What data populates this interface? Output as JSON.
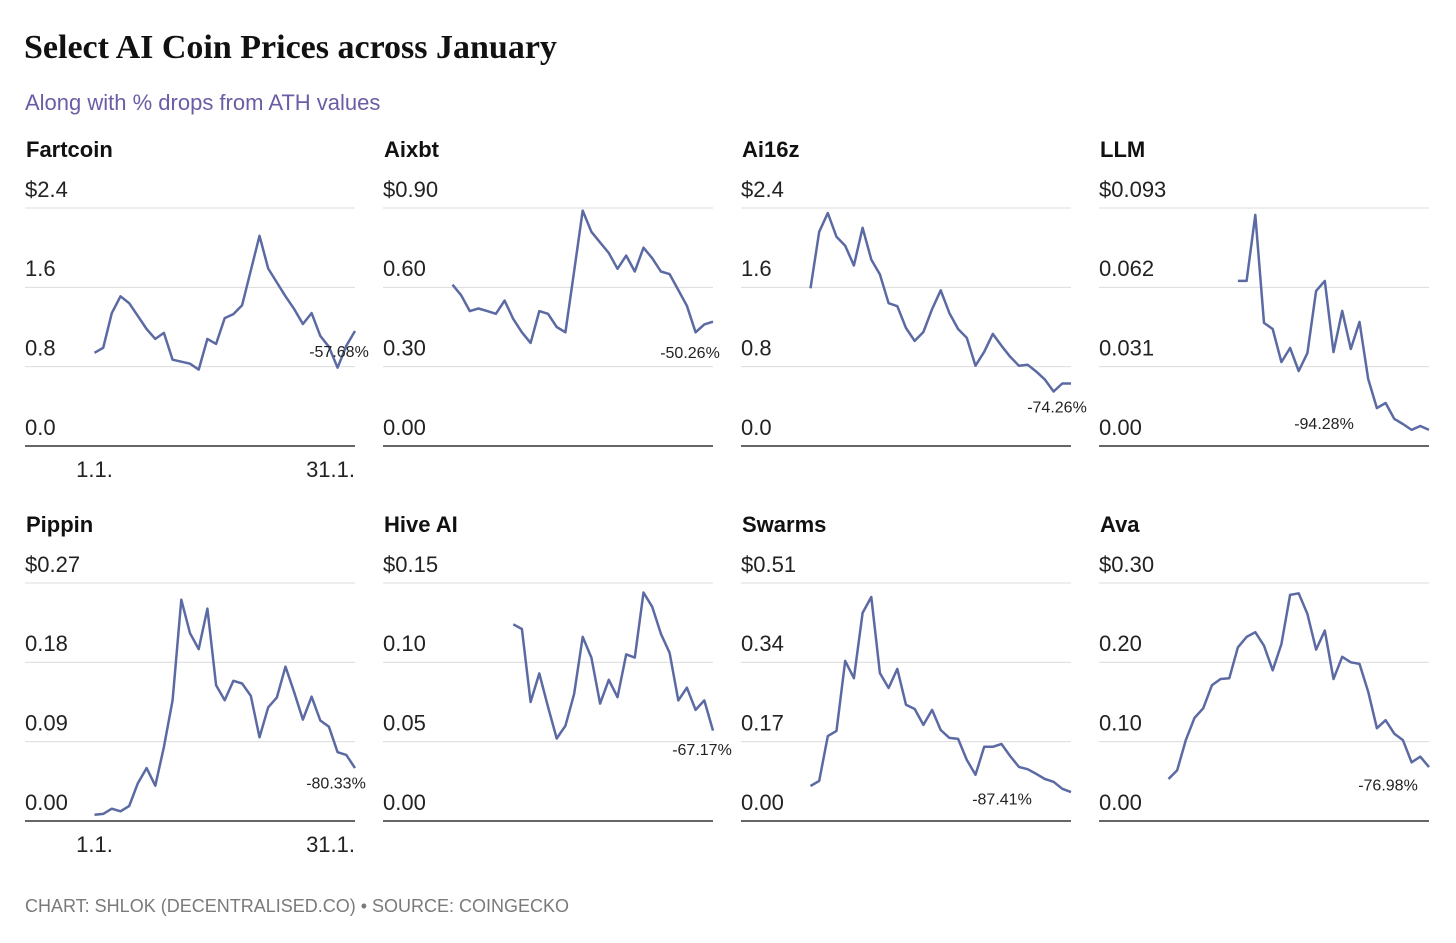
{
  "title": "Select AI Coin Prices across January",
  "subtitle": "Along with % drops from ATH values",
  "source": "CHART: SHLOK (DECENTRALISED.CO) • SOURCE: COINGECKO",
  "chart_data": [
    {
      "type": "line",
      "title": "Fartcoin",
      "color": "#5b6aa3",
      "annotation": "-57.68%",
      "x": [
        1,
        2,
        3,
        4,
        5,
        6,
        7,
        8,
        9,
        10,
        11,
        12,
        13,
        14,
        15,
        16,
        17,
        18,
        19,
        20,
        21,
        22,
        23,
        24,
        25,
        26,
        27,
        28,
        29,
        30,
        31
      ],
      "values": [
        0.94,
        0.99,
        1.34,
        1.51,
        1.44,
        1.31,
        1.18,
        1.08,
        1.14,
        0.87,
        0.85,
        0.83,
        0.77,
        1.08,
        1.03,
        1.29,
        1.33,
        1.42,
        1.77,
        2.12,
        1.79,
        1.65,
        1.51,
        1.38,
        1.23,
        1.34,
        1.11,
        1.0,
        0.79,
        1.01,
        1.16
      ],
      "xlim": [
        -7,
        31
      ],
      "xticks": [
        {
          "value": 1,
          "label": "1.1."
        },
        {
          "value": 31,
          "label": "31.1."
        }
      ],
      "ylim": [
        0,
        2.4
      ],
      "yticks": [
        {
          "value": 2.4,
          "label": "$2.4"
        },
        1.6,
        0.8,
        {
          "value": 0,
          "label": "0.0"
        }
      ]
    },
    {
      "type": "line",
      "title": "Aixbt",
      "color": "#5b6aa3",
      "annotation": "-50.26%",
      "x": [
        1,
        2,
        3,
        4,
        5,
        6,
        7,
        8,
        9,
        10,
        11,
        12,
        13,
        14,
        15,
        16,
        17,
        18,
        19,
        20,
        21,
        22,
        23,
        24,
        25,
        26,
        27,
        28,
        29,
        30,
        31
      ],
      "values": [
        0.61,
        0.57,
        0.51,
        0.52,
        0.51,
        0.5,
        0.55,
        0.48,
        0.43,
        0.39,
        0.51,
        0.5,
        0.45,
        0.43,
        0.66,
        0.89,
        0.81,
        0.77,
        0.73,
        0.67,
        0.72,
        0.66,
        0.75,
        0.71,
        0.66,
        0.65,
        0.59,
        0.53,
        0.43,
        0.46,
        0.47
      ],
      "xlim": [
        -7,
        31
      ],
      "ylim": [
        0,
        0.9
      ],
      "yticks": [
        {
          "value": 0.9,
          "label": "$0.90"
        },
        {
          "value": 0.6,
          "label": "0.60"
        },
        {
          "value": 0.3,
          "label": "0.30"
        },
        {
          "value": 0,
          "label": "0.00"
        }
      ]
    },
    {
      "type": "line",
      "title": "Ai16z",
      "color": "#5b6aa3",
      "annotation": "-74.26%",
      "x": [
        1,
        2,
        3,
        4,
        5,
        6,
        7,
        8,
        9,
        10,
        11,
        12,
        13,
        14,
        15,
        16,
        17,
        18,
        19,
        20,
        21,
        22,
        23,
        24,
        25,
        26,
        27,
        28,
        29,
        30,
        31
      ],
      "values": [
        1.59,
        2.16,
        2.35,
        2.11,
        2.02,
        1.82,
        2.2,
        1.88,
        1.73,
        1.44,
        1.41,
        1.19,
        1.06,
        1.15,
        1.38,
        1.57,
        1.34,
        1.18,
        1.09,
        0.81,
        0.95,
        1.13,
        1.01,
        0.9,
        0.81,
        0.82,
        0.75,
        0.67,
        0.55,
        0.63,
        0.63
      ],
      "xlim": [
        -7,
        31
      ],
      "ylim": [
        0,
        2.4
      ],
      "yticks": [
        {
          "value": 2.4,
          "label": "$2.4"
        },
        1.6,
        0.8,
        {
          "value": 0,
          "label": "0.0"
        }
      ]
    },
    {
      "type": "line",
      "title": "LLM",
      "color": "#5b6aa3",
      "annotation": "-94.28%",
      "x": [
        9,
        10,
        11,
        12,
        13,
        14,
        15,
        16,
        17,
        18,
        19,
        20,
        21,
        22,
        23,
        24,
        25,
        26,
        27,
        28,
        29,
        30,
        31
      ],
      "values": [
        0.0645,
        0.0645,
        0.0903,
        0.0481,
        0.0457,
        0.0328,
        0.0383,
        0.0293,
        0.0363,
        0.0606,
        0.0645,
        0.0367,
        0.0528,
        0.0379,
        0.0485,
        0.0262,
        0.0148,
        0.0168,
        0.0106,
        0.0086,
        0.0063,
        0.0078,
        0.0063
      ],
      "xlim": [
        -7,
        31
      ],
      "ylim": [
        0,
        0.093
      ],
      "yticks": [
        {
          "value": 0.093,
          "label": "$0.093"
        },
        0.062,
        0.031,
        {
          "value": 0,
          "label": "0.00"
        }
      ]
    },
    {
      "type": "line",
      "title": "Pippin",
      "color": "#5b6aa3",
      "annotation": "-80.33%",
      "x": [
        1,
        2,
        3,
        4,
        5,
        6,
        7,
        8,
        9,
        10,
        11,
        12,
        13,
        14,
        15,
        16,
        17,
        18,
        19,
        20,
        21,
        22,
        23,
        24,
        25,
        26,
        27,
        28,
        29,
        30,
        31
      ],
      "values": [
        0.007,
        0.008,
        0.014,
        0.011,
        0.017,
        0.043,
        0.06,
        0.04,
        0.084,
        0.137,
        0.251,
        0.213,
        0.195,
        0.241,
        0.154,
        0.137,
        0.159,
        0.156,
        0.142,
        0.095,
        0.129,
        0.14,
        0.175,
        0.146,
        0.115,
        0.141,
        0.114,
        0.107,
        0.078,
        0.075,
        0.06
      ],
      "xlim": [
        -7,
        31
      ],
      "xticks": [
        {
          "value": 1,
          "label": "1.1."
        },
        {
          "value": 31,
          "label": "31.1."
        }
      ],
      "ylim": [
        0,
        0.27
      ],
      "yticks": [
        {
          "value": 0.27,
          "label": "$0.27"
        },
        0.18,
        0.09,
        {
          "value": 0,
          "label": "0.00"
        }
      ]
    },
    {
      "type": "line",
      "title": "Hive AI",
      "color": "#5b6aa3",
      "annotation": "-67.17%",
      "x": [
        8,
        9,
        10,
        11,
        12,
        13,
        14,
        15,
        16,
        17,
        18,
        19,
        20,
        21,
        22,
        23,
        24,
        25,
        26,
        27,
        28,
        29,
        30,
        31
      ],
      "values": [
        0.124,
        0.121,
        0.075,
        0.093,
        0.072,
        0.052,
        0.06,
        0.08,
        0.116,
        0.103,
        0.074,
        0.089,
        0.078,
        0.105,
        0.103,
        0.144,
        0.135,
        0.118,
        0.106,
        0.076,
        0.084,
        0.07,
        0.076,
        0.057
      ],
      "xlim": [
        -7,
        31
      ],
      "ylim": [
        0,
        0.15
      ],
      "yticks": [
        {
          "value": 0.15,
          "label": "$0.15"
        },
        {
          "value": 0.1,
          "label": "0.10"
        },
        0.05,
        {
          "value": 0,
          "label": "0.00"
        }
      ]
    },
    {
      "type": "line",
      "title": "Swarms",
      "color": "#5b6aa3",
      "annotation": "-87.41%",
      "x": [
        1,
        2,
        3,
        4,
        5,
        6,
        7,
        8,
        9,
        10,
        11,
        12,
        13,
        14,
        15,
        16,
        17,
        18,
        19,
        20,
        21,
        22,
        23,
        24,
        25,
        26,
        27,
        28,
        29,
        30,
        31
      ],
      "values": [
        0.075,
        0.086,
        0.182,
        0.193,
        0.343,
        0.306,
        0.446,
        0.48,
        0.317,
        0.285,
        0.326,
        0.249,
        0.24,
        0.206,
        0.238,
        0.195,
        0.178,
        0.176,
        0.131,
        0.099,
        0.159,
        0.159,
        0.165,
        0.139,
        0.116,
        0.111,
        0.101,
        0.09,
        0.084,
        0.069,
        0.062
      ],
      "xlim": [
        -7,
        31
      ],
      "ylim": [
        0,
        0.51
      ],
      "yticks": [
        {
          "value": 0.51,
          "label": "$0.51"
        },
        0.34,
        0.17,
        {
          "value": 0,
          "label": "0.00"
        }
      ]
    },
    {
      "type": "line",
      "title": "Ava",
      "color": "#5b6aa3",
      "annotation": "-76.98%",
      "x": [
        1,
        2,
        3,
        4,
        5,
        6,
        7,
        8,
        9,
        10,
        11,
        12,
        13,
        14,
        15,
        16,
        17,
        18,
        19,
        20,
        21,
        22,
        23,
        24,
        25,
        26,
        27,
        28,
        29,
        30,
        31
      ],
      "values": [
        0.053,
        0.064,
        0.102,
        0.13,
        0.142,
        0.171,
        0.179,
        0.18,
        0.219,
        0.232,
        0.238,
        0.221,
        0.19,
        0.223,
        0.285,
        0.287,
        0.261,
        0.216,
        0.24,
        0.179,
        0.207,
        0.2,
        0.198,
        0.163,
        0.117,
        0.127,
        0.11,
        0.102,
        0.074,
        0.081,
        0.068
      ],
      "xlim": [
        -7,
        31
      ],
      "ylim": [
        0,
        0.3
      ],
      "yticks": [
        {
          "value": 0.3,
          "label": "$0.30"
        },
        {
          "value": 0.2,
          "label": "0.20"
        },
        {
          "value": 0.1,
          "label": "0.10"
        },
        {
          "value": 0,
          "label": "0.00"
        }
      ]
    }
  ]
}
